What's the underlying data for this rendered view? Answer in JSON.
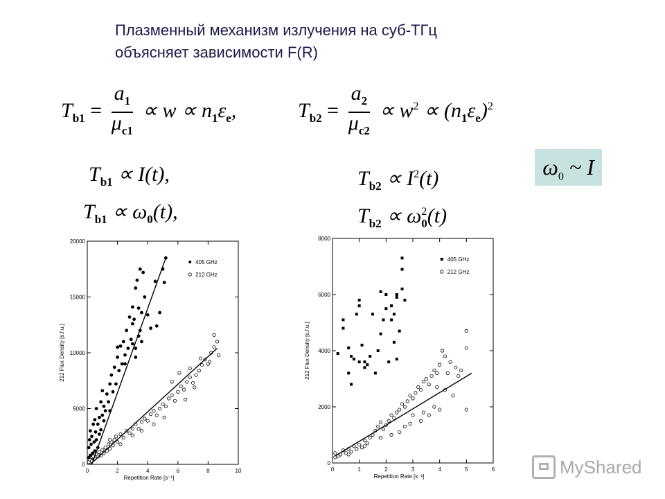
{
  "title": {
    "line1": "Плазменный механизм излучения на суб-ТГц",
    "line2": "объясняет зависимости F(R)"
  },
  "formulas": {
    "tb1_def": {
      "lhs": "T",
      "lhs_sub": "b1",
      "num": "a",
      "num_sub": "1",
      "den": "μ",
      "den_sub": "c1",
      "rhs": "∝ w ∝ n",
      "rhs_sub": "1",
      "rhs2": "ε",
      "rhs2_sub": "e",
      "tail": ","
    },
    "tb2_def": {
      "lhs": "T",
      "lhs_sub": "b2",
      "num": "a",
      "num_sub": "2",
      "den": "μ",
      "den_sub": "c2",
      "rhs": "∝ w",
      "rhs_sup": "2",
      "rhs2": "∝ (n",
      "rhs2_sub": "1",
      "rhs3": "ε",
      "rhs3_sub": "e",
      "tail": ")",
      "tail_sup": "2"
    },
    "tb1_I": {
      "lhs": "T",
      "lhs_sub": "b1",
      "rhs": "∝ I(t),"
    },
    "tb1_omega": {
      "lhs": "T",
      "lhs_sub": "b1",
      "rhs": "∝ ω",
      "rhs_sub": "0",
      "tail": "(t),"
    },
    "tb2_I": {
      "lhs": "T",
      "lhs_sub": "b2",
      "rhs": "∝ I",
      "rhs_sup": "2",
      "tail": "(t)"
    },
    "tb2_omega": {
      "lhs": "T",
      "lhs_sub": "b2",
      "rhs": "∝ ω",
      "rhs_sub": "0",
      "rhs_sup": "2",
      "tail": "(t)"
    },
    "omega_box": {
      "sym": "ω",
      "sub": "0",
      "rest": " ~ I"
    }
  },
  "watermark": {
    "text": "MyShared"
  },
  "chart_data": [
    {
      "type": "scatter",
      "xlabel": "Repetition Rate [s⁻¹]",
      "ylabel": "212 Flux Density [s.f.u.]",
      "xlim": [
        0,
        10
      ],
      "ylim": [
        0,
        20000
      ],
      "xticks": [
        "0",
        "2",
        "4",
        "6",
        "8",
        "10"
      ],
      "yticks": [
        "0",
        "5000",
        "10000",
        "15000",
        "20000"
      ],
      "legend_position": "top-right",
      "series": [
        {
          "name": "405 GHz",
          "marker": "filled",
          "color": "#000000",
          "points": [
            [
              0.1,
              600
            ],
            [
              0.1,
              1500
            ],
            [
              0.15,
              2200
            ],
            [
              0.2,
              800
            ],
            [
              0.2,
              3000
            ],
            [
              0.25,
              1800
            ],
            [
              0.3,
              400
            ],
            [
              0.3,
              2500
            ],
            [
              0.35,
              1000
            ],
            [
              0.4,
              3600
            ],
            [
              0.45,
              2000
            ],
            [
              0.5,
              1200
            ],
            [
              0.5,
              4000
            ],
            [
              0.55,
              2900
            ],
            [
              0.6,
              2200
            ],
            [
              0.6,
              5000
            ],
            [
              0.7,
              3600
            ],
            [
              0.7,
              1500
            ],
            [
              0.8,
              4200
            ],
            [
              0.8,
              2700
            ],
            [
              0.9,
              5600
            ],
            [
              0.9,
              3100
            ],
            [
              1.0,
              4400
            ],
            [
              1.0,
              6600
            ],
            [
              1.1,
              3900
            ],
            [
              1.1,
              5200
            ],
            [
              1.2,
              4800
            ],
            [
              1.3,
              6300
            ],
            [
              1.4,
              5600
            ],
            [
              1.5,
              7200
            ],
            [
              1.5,
              4800
            ],
            [
              1.6,
              8000
            ],
            [
              1.7,
              6500
            ],
            [
              1.8,
              8700
            ],
            [
              1.9,
              7200
            ],
            [
              2.0,
              9600
            ],
            [
              2.0,
              10500
            ],
            [
              2.1,
              8400
            ],
            [
              2.2,
              10600
            ],
            [
              2.3,
              9000
            ],
            [
              2.4,
              11000
            ],
            [
              2.5,
              9800
            ],
            [
              2.6,
              12000
            ],
            [
              2.7,
              10400
            ],
            [
              2.8,
              13200
            ],
            [
              2.9,
              11200
            ],
            [
              3.0,
              14100
            ],
            [
              3.0,
              12600
            ],
            [
              3.1,
              13000
            ],
            [
              3.2,
              15800
            ],
            [
              3.2,
              10400
            ],
            [
              3.3,
              16500
            ],
            [
              3.4,
              14000
            ],
            [
              3.5,
              17500
            ],
            [
              3.5,
              12000
            ],
            [
              3.6,
              13600
            ],
            [
              3.7,
              17200
            ],
            [
              3.8,
              15000
            ],
            [
              3.2,
              9600
            ],
            [
              3.4,
              11500
            ],
            [
              4.0,
              13400
            ],
            [
              4.2,
              12200
            ],
            [
              4.5,
              16400
            ],
            [
              4.8,
              13600
            ],
            [
              5.0,
              17500
            ],
            [
              5.1,
              16300
            ],
            [
              5.2,
              18500
            ],
            [
              2.5,
              9000
            ],
            [
              3.0,
              10800
            ],
            [
              3.6,
              11000
            ],
            [
              4.6,
              12400
            ]
          ]
        },
        {
          "name": "212 GHz",
          "marker": "open",
          "color": "#000000",
          "points": [
            [
              0.1,
              200
            ],
            [
              0.2,
              400
            ],
            [
              0.3,
              300
            ],
            [
              0.4,
              700
            ],
            [
              0.5,
              500
            ],
            [
              0.6,
              900
            ],
            [
              0.7,
              700
            ],
            [
              0.8,
              1100
            ],
            [
              0.9,
              800
            ],
            [
              1.0,
              1300
            ],
            [
              1.1,
              1000
            ],
            [
              1.2,
              1500
            ],
            [
              1.3,
              1200
            ],
            [
              1.4,
              1800
            ],
            [
              1.5,
              1400
            ],
            [
              1.6,
              2000
            ],
            [
              1.7,
              1700
            ],
            [
              1.8,
              2200
            ],
            [
              1.9,
              2500
            ],
            [
              2.0,
              2000
            ],
            [
              2.2,
              2700
            ],
            [
              2.4,
              2400
            ],
            [
              2.6,
              3000
            ],
            [
              2.8,
              2800
            ],
            [
              3.0,
              3200
            ],
            [
              3.2,
              3600
            ],
            [
              3.4,
              3200
            ],
            [
              3.6,
              3800
            ],
            [
              3.8,
              4100
            ],
            [
              4.0,
              3900
            ],
            [
              4.2,
              4500
            ],
            [
              4.4,
              4800
            ],
            [
              4.6,
              4400
            ],
            [
              4.8,
              5000
            ],
            [
              5.0,
              5400
            ],
            [
              5.2,
              5200
            ],
            [
              5.4,
              5900
            ],
            [
              5.6,
              6200
            ],
            [
              5.8,
              5700
            ],
            [
              6.0,
              6500
            ],
            [
              6.2,
              7000
            ],
            [
              6.4,
              6700
            ],
            [
              6.6,
              7400
            ],
            [
              6.8,
              7800
            ],
            [
              7.0,
              7300
            ],
            [
              7.2,
              8000
            ],
            [
              7.4,
              8400
            ],
            [
              7.6,
              8900
            ],
            [
              7.8,
              9400
            ],
            [
              8.0,
              9000
            ],
            [
              8.2,
              10000
            ],
            [
              8.4,
              10500
            ],
            [
              8.6,
              11000
            ],
            [
              5.6,
              7400
            ],
            [
              6.1,
              8200
            ],
            [
              6.8,
              8600
            ],
            [
              7.5,
              9500
            ],
            [
              8.1,
              9200
            ],
            [
              8.4,
              11600
            ],
            [
              8.7,
              9800
            ],
            [
              3.0,
              2600
            ],
            [
              3.6,
              3000
            ],
            [
              4.4,
              3600
            ],
            [
              2.2,
              1800
            ],
            [
              1.5,
              2200
            ],
            [
              5.1,
              4200
            ],
            [
              6.5,
              5800
            ],
            [
              7.1,
              6900
            ]
          ]
        }
      ],
      "fits": [
        {
          "series": "405 GHz",
          "from": [
            0.3,
            0
          ],
          "to": [
            5.2,
            18500
          ]
        },
        {
          "series": "212 GHz",
          "from": [
            0.2,
            0
          ],
          "to": [
            8.6,
            10400
          ]
        }
      ]
    },
    {
      "type": "scatter",
      "xlabel": "Repetition Rate [s⁻¹]",
      "ylabel": "212 Flux Density [s.f.u.]",
      "xlim": [
        0,
        6
      ],
      "ylim": [
        0,
        8000
      ],
      "xticks": [
        "0",
        "1",
        "2",
        "3",
        "4",
        "5",
        "6"
      ],
      "yticks": [
        "0",
        "2000",
        "4000",
        "6000",
        "8000"
      ],
      "legend_position": "top-right",
      "series": [
        {
          "name": "405 GHz",
          "marker": "filled",
          "color": "#000000",
          "points": [
            [
              0.2,
              3900
            ],
            [
              0.4,
              4800
            ],
            [
              0.4,
              5100
            ],
            [
              0.6,
              3200
            ],
            [
              0.6,
              4100
            ],
            [
              0.7,
              3800
            ],
            [
              0.8,
              3700
            ],
            [
              0.9,
              5300
            ],
            [
              1.0,
              5600
            ],
            [
              1.0,
              5800
            ],
            [
              1.0,
              3600
            ],
            [
              1.1,
              4200
            ],
            [
              1.2,
              3400
            ],
            [
              1.2,
              3600
            ],
            [
              1.4,
              3800
            ],
            [
              1.5,
              5300
            ],
            [
              1.6,
              3200
            ],
            [
              1.7,
              4000
            ],
            [
              1.8,
              6100
            ],
            [
              1.9,
              5100
            ],
            [
              2.0,
              5500
            ],
            [
              2.0,
              6000
            ],
            [
              2.1,
              3600
            ],
            [
              2.2,
              5600
            ],
            [
              2.2,
              5100
            ],
            [
              2.3,
              5300
            ],
            [
              2.3,
              4300
            ],
            [
              2.4,
              5900
            ],
            [
              2.4,
              3700
            ],
            [
              2.5,
              4700
            ],
            [
              2.6,
              6200
            ],
            [
              2.6,
              6900
            ],
            [
              2.6,
              7300
            ],
            [
              2.7,
              5800
            ],
            [
              2.4,
              6000
            ],
            [
              0.7,
              2800
            ],
            [
              1.3,
              3500
            ],
            [
              1.8,
              4600
            ]
          ]
        },
        {
          "name": "212 GHz",
          "marker": "open",
          "color": "#000000",
          "points": [
            [
              0.1,
              200
            ],
            [
              0.1,
              350
            ],
            [
              0.2,
              250
            ],
            [
              0.3,
              300
            ],
            [
              0.4,
              450
            ],
            [
              0.5,
              350
            ],
            [
              0.6,
              500
            ],
            [
              0.7,
              400
            ],
            [
              0.8,
              600
            ],
            [
              0.9,
              500
            ],
            [
              1.0,
              650
            ],
            [
              1.1,
              550
            ],
            [
              1.2,
              800
            ],
            [
              1.3,
              700
            ],
            [
              1.4,
              900
            ],
            [
              1.5,
              1000
            ],
            [
              1.6,
              1150
            ],
            [
              1.7,
              1300
            ],
            [
              1.8,
              1450
            ],
            [
              1.9,
              1200
            ],
            [
              2.0,
              1350
            ],
            [
              2.1,
              1500
            ],
            [
              2.2,
              1700
            ],
            [
              2.3,
              1600
            ],
            [
              2.4,
              1800
            ],
            [
              2.5,
              1900
            ],
            [
              2.6,
              2100
            ],
            [
              2.7,
              2000
            ],
            [
              2.8,
              2200
            ],
            [
              2.9,
              2400
            ],
            [
              3.0,
              2300
            ],
            [
              3.1,
              2500
            ],
            [
              3.2,
              2700
            ],
            [
              3.3,
              2600
            ],
            [
              3.4,
              2900
            ],
            [
              3.5,
              3000
            ],
            [
              3.6,
              2800
            ],
            [
              3.7,
              3100
            ],
            [
              3.8,
              3300
            ],
            [
              3.9,
              3200
            ],
            [
              4.0,
              3500
            ],
            [
              4.1,
              4000
            ],
            [
              4.2,
              3800
            ],
            [
              4.4,
              3600
            ],
            [
              4.6,
              3400
            ],
            [
              4.8,
              3300
            ],
            [
              5.0,
              4700
            ],
            [
              5.0,
              4100
            ],
            [
              3.3,
              1500
            ],
            [
              3.6,
              1700
            ],
            [
              4.0,
              1900
            ],
            [
              4.5,
              2400
            ],
            [
              3.0,
              1700
            ],
            [
              2.7,
              1300
            ],
            [
              2.5,
              1100
            ],
            [
              3.8,
              2000
            ],
            [
              4.2,
              2600
            ],
            [
              4.7,
              3100
            ],
            [
              5.0,
              1900
            ],
            [
              3.4,
              1800
            ],
            [
              2.9,
              1400
            ],
            [
              3.9,
              2700
            ],
            [
              4.3,
              3200
            ],
            [
              2.2,
              1000
            ],
            [
              1.8,
              900
            ],
            [
              1.2,
              600
            ],
            [
              0.6,
              300
            ]
          ]
        }
      ],
      "fits": [
        {
          "series": "212 GHz",
          "from": [
            0.1,
            250
          ],
          "to": [
            5.2,
            3200
          ]
        }
      ]
    }
  ]
}
